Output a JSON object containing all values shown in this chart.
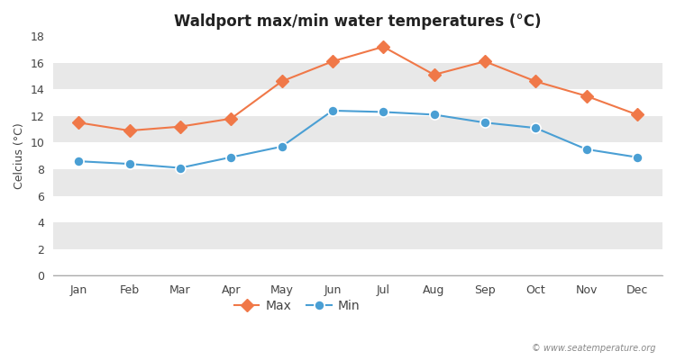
{
  "months": [
    "Jan",
    "Feb",
    "Mar",
    "Apr",
    "May",
    "Jun",
    "Jul",
    "Aug",
    "Sep",
    "Oct",
    "Nov",
    "Dec"
  ],
  "max_temps": [
    11.5,
    10.9,
    11.2,
    11.8,
    14.6,
    16.1,
    17.2,
    15.1,
    16.1,
    14.6,
    13.5,
    12.1
  ],
  "min_temps": [
    8.6,
    8.4,
    8.1,
    8.9,
    9.7,
    12.4,
    12.3,
    12.1,
    11.5,
    11.1,
    9.5,
    8.9
  ],
  "max_color": "#f07848",
  "min_color": "#4a9fd4",
  "title": "Waldport max/min water temperatures (°C)",
  "ylabel": "Celcius (°C)",
  "ylim": [
    0,
    18
  ],
  "yticks": [
    0,
    2,
    4,
    6,
    8,
    10,
    12,
    14,
    16,
    18
  ],
  "outer_bg": "#ffffff",
  "band_colors": [
    "#ffffff",
    "#e8e8e8"
  ],
  "legend_max": "Max",
  "legend_min": "Min",
  "watermark": "© www.seatemperature.org"
}
